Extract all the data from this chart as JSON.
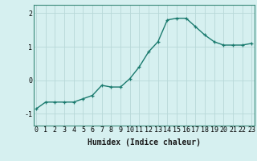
{
  "x": [
    0,
    1,
    2,
    3,
    4,
    5,
    6,
    7,
    8,
    9,
    10,
    11,
    12,
    13,
    14,
    15,
    16,
    17,
    18,
    19,
    20,
    21,
    22,
    23
  ],
  "y": [
    -0.85,
    -0.65,
    -0.65,
    -0.65,
    -0.65,
    -0.55,
    -0.45,
    -0.15,
    -0.2,
    -0.2,
    0.05,
    0.4,
    0.85,
    1.15,
    1.8,
    1.85,
    1.85,
    1.6,
    1.35,
    1.15,
    1.05,
    1.05,
    1.05,
    1.1
  ],
  "line_color": "#1a7a6e",
  "marker": "+",
  "marker_size": 3,
  "bg_color": "#d6f0f0",
  "grid_color": "#b8d8d8",
  "xlabel": "Humidex (Indice chaleur)",
  "xlabel_fontsize": 7,
  "yticks": [
    -1,
    0,
    1,
    2
  ],
  "ytick_labels": [
    "-1",
    "0",
    "1",
    "2"
  ],
  "xticks": [
    0,
    1,
    2,
    3,
    4,
    5,
    6,
    7,
    8,
    9,
    10,
    11,
    12,
    13,
    14,
    15,
    16,
    17,
    18,
    19,
    20,
    21,
    22,
    23
  ],
  "ylim": [
    -1.35,
    2.25
  ],
  "xlim": [
    -0.3,
    23.3
  ],
  "tick_fontsize": 6,
  "line_width": 1.0,
  "spine_color": "#3a8a7a"
}
